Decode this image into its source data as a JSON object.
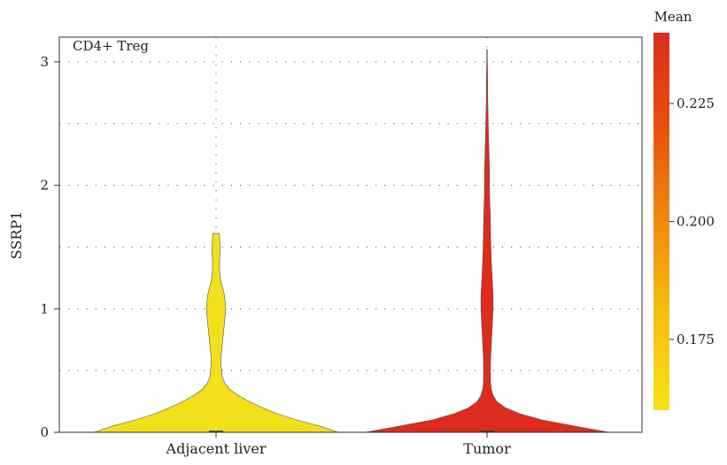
{
  "chart_data": {
    "type": "violin",
    "panel_label": "CD4+ Treg",
    "ylabel": "SSRP1",
    "xlabel": "",
    "ylim": [
      0,
      3.2
    ],
    "yticks": [
      0,
      1,
      2,
      3
    ],
    "categories": [
      "Adjacent liver",
      "Tumor"
    ],
    "series": [
      {
        "category": "Adjacent liver",
        "mean": 0.165,
        "color": "#f2e01b",
        "max": 1.61,
        "profile": [
          [
            0,
            1.0
          ],
          [
            0.05,
            0.85
          ],
          [
            0.1,
            0.66
          ],
          [
            0.15,
            0.5
          ],
          [
            0.2,
            0.38
          ],
          [
            0.25,
            0.27
          ],
          [
            0.3,
            0.18
          ],
          [
            0.35,
            0.11
          ],
          [
            0.4,
            0.07
          ],
          [
            0.45,
            0.05
          ],
          [
            0.5,
            0.045
          ],
          [
            0.55,
            0.04
          ],
          [
            0.6,
            0.04
          ],
          [
            0.65,
            0.045
          ],
          [
            0.7,
            0.05
          ],
          [
            0.75,
            0.055
          ],
          [
            0.8,
            0.06
          ],
          [
            0.85,
            0.065
          ],
          [
            0.9,
            0.07
          ],
          [
            0.95,
            0.075
          ],
          [
            1.0,
            0.08
          ],
          [
            1.05,
            0.075
          ],
          [
            1.1,
            0.07
          ],
          [
            1.15,
            0.06
          ],
          [
            1.2,
            0.045
          ],
          [
            1.25,
            0.035
          ],
          [
            1.3,
            0.03
          ],
          [
            1.35,
            0.028
          ],
          [
            1.4,
            0.03
          ],
          [
            1.45,
            0.032
          ],
          [
            1.5,
            0.032
          ],
          [
            1.55,
            0.03
          ],
          [
            1.61,
            0.028
          ]
        ]
      },
      {
        "category": "Tumor",
        "mean": 0.24,
        "color": "#dd2c1d",
        "max": 3.1,
        "profile": [
          [
            0,
            1.0
          ],
          [
            0.05,
            0.72
          ],
          [
            0.1,
            0.45
          ],
          [
            0.15,
            0.27
          ],
          [
            0.2,
            0.15
          ],
          [
            0.25,
            0.08
          ],
          [
            0.3,
            0.05
          ],
          [
            0.35,
            0.035
          ],
          [
            0.4,
            0.03
          ],
          [
            0.5,
            0.028
          ],
          [
            0.6,
            0.03
          ],
          [
            0.7,
            0.035
          ],
          [
            0.8,
            0.04
          ],
          [
            0.9,
            0.045
          ],
          [
            1.0,
            0.05
          ],
          [
            1.1,
            0.05
          ],
          [
            1.2,
            0.045
          ],
          [
            1.3,
            0.04
          ],
          [
            1.4,
            0.035
          ],
          [
            1.5,
            0.032
          ],
          [
            1.6,
            0.03
          ],
          [
            1.7,
            0.028
          ],
          [
            1.8,
            0.025
          ],
          [
            1.9,
            0.022
          ],
          [
            2.0,
            0.02
          ],
          [
            2.1,
            0.02
          ],
          [
            2.2,
            0.018
          ],
          [
            2.3,
            0.015
          ],
          [
            2.4,
            0.012
          ],
          [
            2.5,
            0.01
          ],
          [
            2.6,
            0.008
          ],
          [
            2.7,
            0.006
          ],
          [
            2.8,
            0.005
          ],
          [
            2.9,
            0.004
          ],
          [
            3.0,
            0.003
          ],
          [
            3.1,
            0.002
          ]
        ]
      }
    ],
    "colorbar": {
      "title": "Mean",
      "min": 0.16,
      "max": 0.24,
      "ticks": [
        0.175,
        0.2,
        0.225
      ],
      "tick_labels": [
        "0.175",
        "0.200",
        "0.225"
      ],
      "colors": [
        "#f7e11c",
        "#f5c011",
        "#f08a0c",
        "#e8500d",
        "#dd2c1d"
      ]
    },
    "grid": true,
    "grid_style": "dotted",
    "legend": "right colorbar"
  }
}
